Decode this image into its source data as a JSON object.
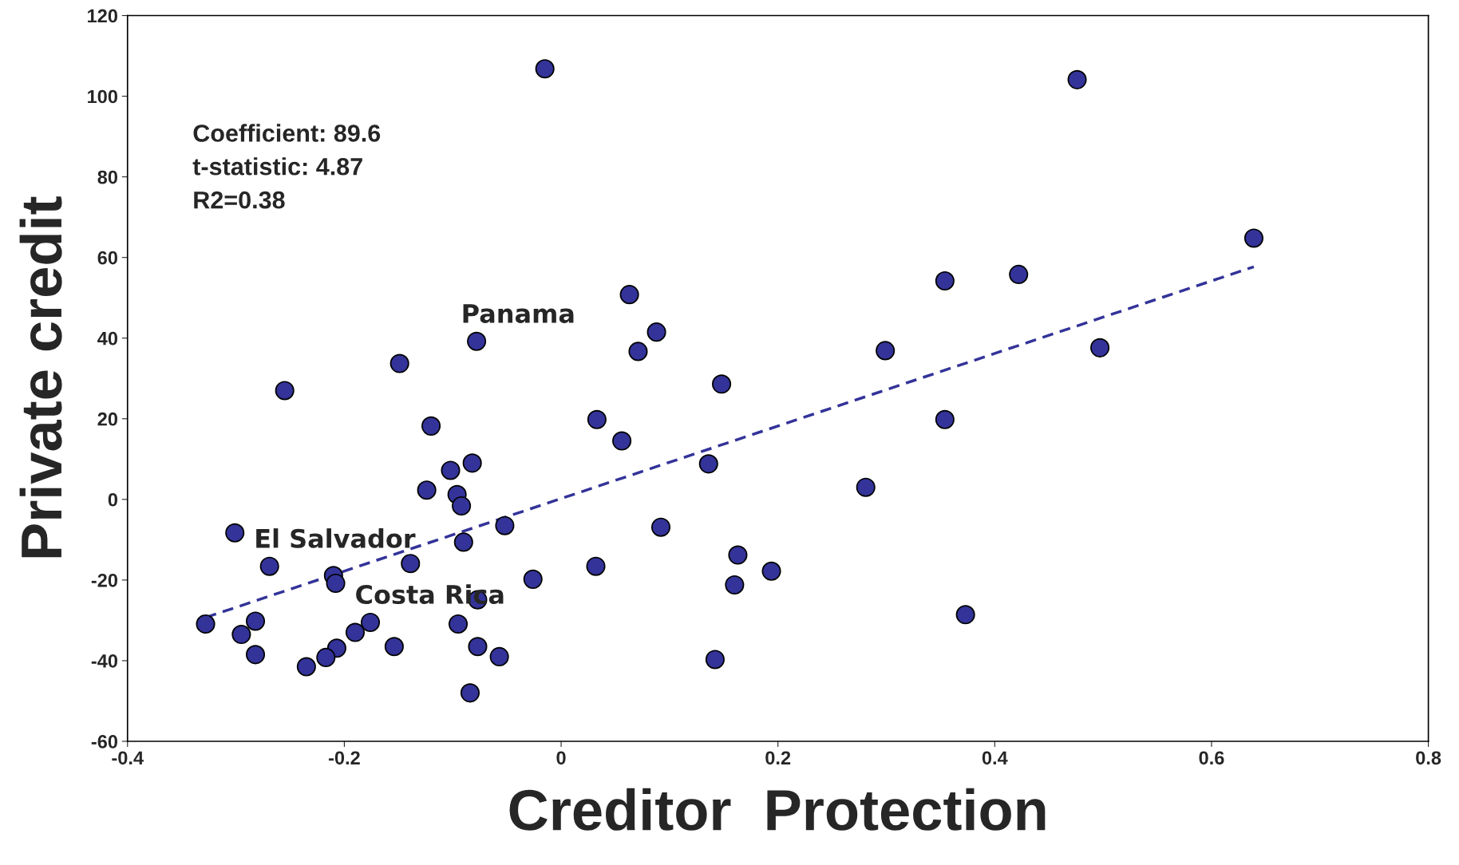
{
  "chart_data": {
    "type": "scatter",
    "xlabel": "Creditor  Protection",
    "ylabel": "Private credit",
    "xlim": [
      -0.4,
      0.8
    ],
    "ylim": [
      -60,
      120
    ],
    "xticks": [
      -0.4,
      -0.2,
      0,
      0.2,
      0.4,
      0.6,
      0.8
    ],
    "yticks": [
      -60,
      -40,
      -20,
      0,
      20,
      40,
      60,
      80,
      100,
      120
    ],
    "grid": false,
    "series": [
      {
        "color": "#333399",
        "marker": "circle",
        "x": [
          -0.015,
          0.476,
          0.639,
          0.354,
          0.422,
          0.063,
          0.088,
          0.071,
          0.299,
          0.497,
          -0.078,
          -0.149,
          -0.255,
          0.148,
          -0.12,
          0.033,
          0.056,
          0.354,
          -0.102,
          -0.082,
          0.136,
          -0.124,
          -0.096,
          -0.092,
          0.281,
          -0.301,
          -0.052,
          0.092,
          -0.09,
          -0.269,
          -0.139,
          0.032,
          0.163,
          0.194,
          -0.21,
          -0.208,
          -0.026,
          0.16,
          -0.077,
          0.373,
          -0.328,
          -0.282,
          -0.176,
          -0.19,
          -0.295,
          -0.095,
          -0.154,
          -0.077,
          -0.207,
          -0.282,
          -0.217,
          -0.057,
          -0.235,
          0.142,
          -0.084
        ],
        "values": [
          106.8,
          104.1,
          64.8,
          54.2,
          55.8,
          50.8,
          41.5,
          36.7,
          36.9,
          37.6,
          39.2,
          33.7,
          27.0,
          28.6,
          18.2,
          19.8,
          14.5,
          19.8,
          7.2,
          9.0,
          8.8,
          2.3,
          1.2,
          -1.6,
          3.0,
          -8.3,
          -6.5,
          -6.9,
          -10.6,
          -16.6,
          -15.9,
          -16.6,
          -13.8,
          -17.8,
          -18.9,
          -20.8,
          -19.8,
          -21.2,
          -24.9,
          -28.6,
          -30.9,
          -30.2,
          -30.5,
          -33.0,
          -33.5,
          -30.9,
          -36.5,
          -36.5,
          -36.9,
          -38.5,
          -39.2,
          -39.0,
          -41.5,
          -39.7,
          -48.0
        ]
      },
      {
        "type": "line",
        "color": "#333399",
        "line_style": "dashed",
        "marker": "none",
        "x": [
          -0.328,
          0.639
        ],
        "values": [
          -29.3,
          57.7
        ]
      }
    ],
    "annotations": [
      "Coefficient: 89.6",
      "t-statistic: 4.87",
      "R2=0.38",
      {
        "text": "Panama",
        "x": -0.078,
        "y": 39.2
      },
      {
        "text": "El Salvador",
        "x": -0.269,
        "y": -16.6
      },
      {
        "text": "Costa Rica",
        "x": -0.176,
        "y": -30.5
      }
    ]
  }
}
